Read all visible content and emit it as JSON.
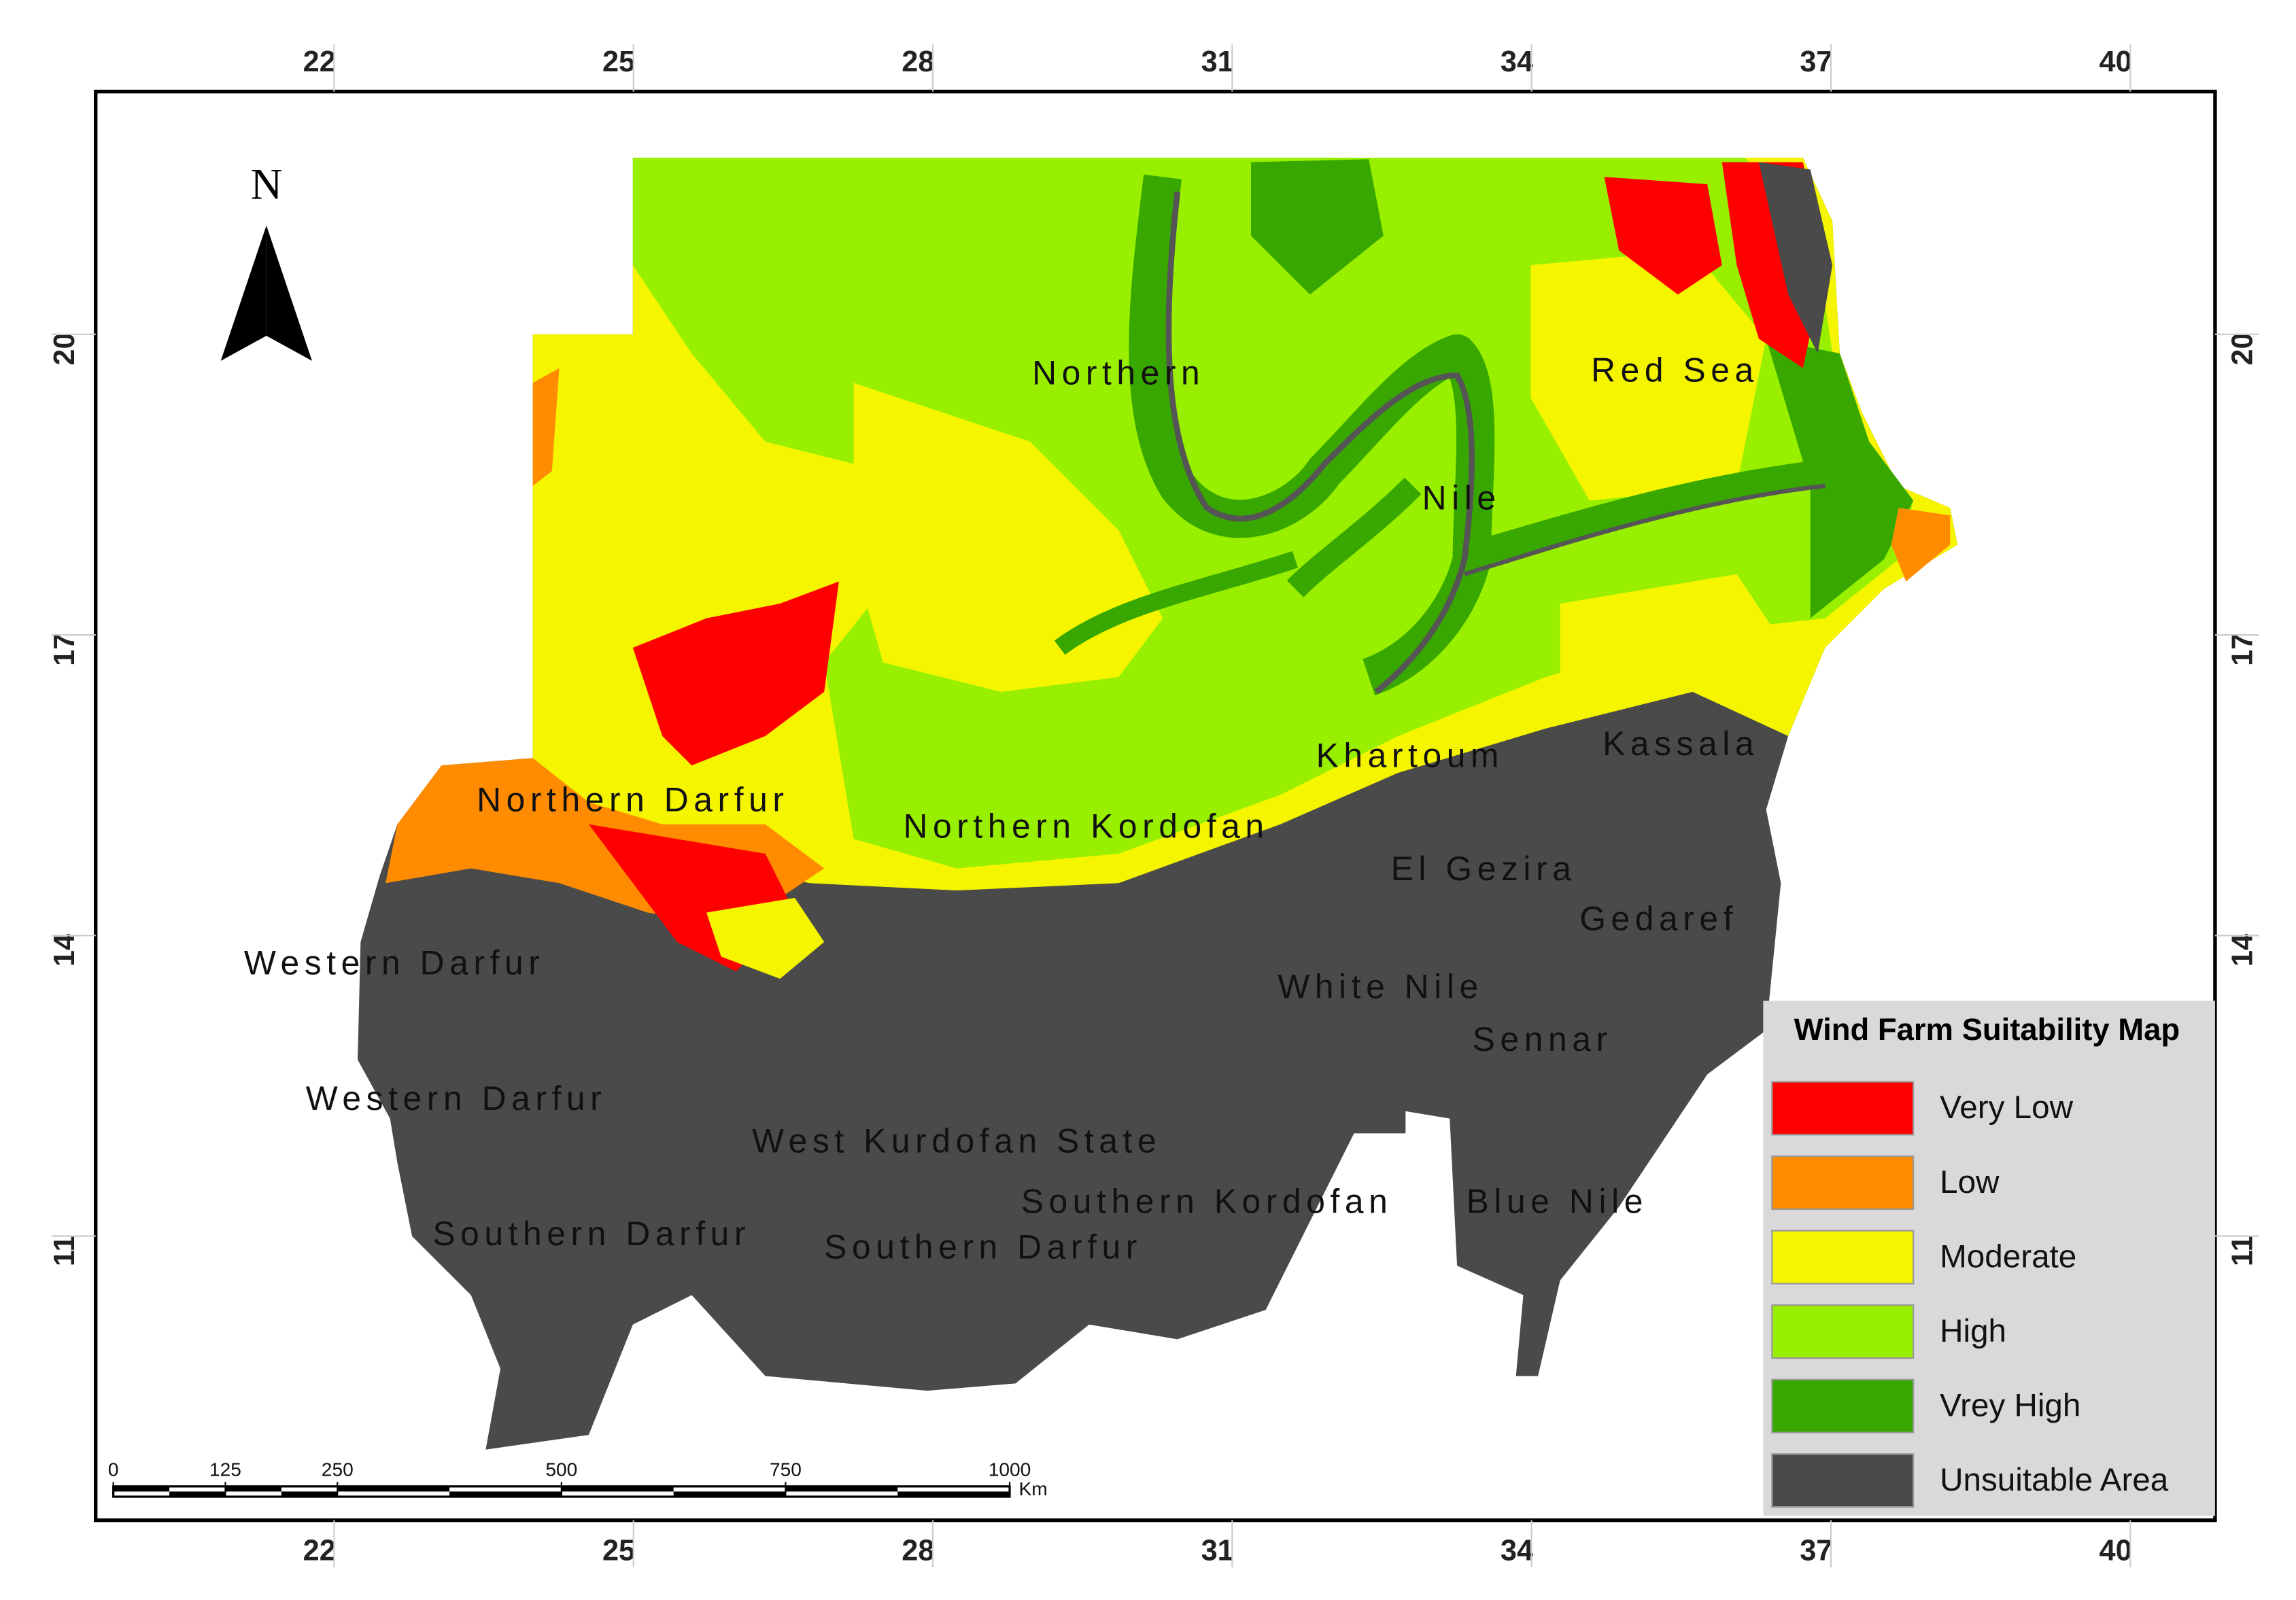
{
  "north_arrow": "N",
  "longitude_ticks": [
    22,
    25,
    28,
    31,
    34,
    37,
    40
  ],
  "latitude_ticks": [
    20,
    17,
    14,
    11
  ],
  "regions": [
    "Northern",
    "Red Sea",
    "Nile",
    "Khartoum",
    "Kassala",
    "Northern Darfur",
    "Northern Kordofan",
    "El Gezira",
    "Gedaref",
    "Western Darfur",
    "White Nile",
    "Sennar",
    "Western Darfur",
    "West Kurdofan State",
    "Southern Kordofan",
    "Blue Nile",
    "Southern Darfur",
    "Southern Darfur"
  ],
  "scale_bar": {
    "labels": [
      0,
      125,
      250,
      500,
      750,
      1000
    ],
    "unit": "Km"
  },
  "legend": {
    "title": "Wind Farm Suitability Map",
    "items": [
      {
        "label": "Very Low",
        "color": "#ff0000"
      },
      {
        "label": "Low",
        "color": "#ff8c00"
      },
      {
        "label": "Moderate",
        "color": "#f5f500"
      },
      {
        "label": "High",
        "color": "#98f000"
      },
      {
        "label": "Vrey High",
        "color": "#38a800"
      },
      {
        "label": "Unsuitable Area",
        "color": "#4a4a4a"
      }
    ]
  }
}
